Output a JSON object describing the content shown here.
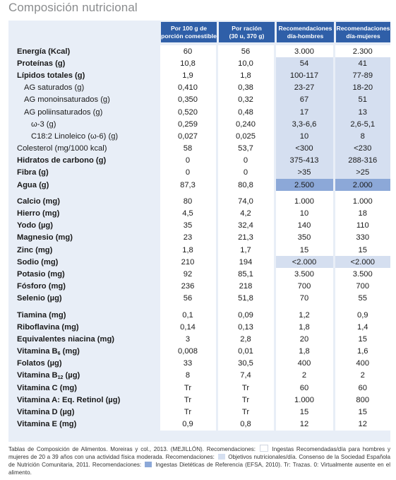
{
  "title": "Composición nutricional",
  "headers": [
    [
      "Por 100 g de",
      "porción comestible"
    ],
    [
      "Por ración",
      "(30 u, 370 g)"
    ],
    [
      "Recomendaciones",
      "día-hombres"
    ],
    [
      "Recomendaciones",
      "día-mujeres"
    ]
  ],
  "rows": [
    {
      "label": "Energía (Kcal)",
      "v": [
        "60",
        "56",
        "3.000",
        "2.300"
      ],
      "bold": true
    },
    {
      "label": "Proteínas (g)",
      "v": [
        "10,8",
        "10,0",
        "54",
        "41"
      ],
      "bold": true,
      "rec": "obj"
    },
    {
      "label": "Lípidos totales (g)",
      "v": [
        "1,9",
        "1,8",
        "100-117",
        "77-89"
      ],
      "bold": true,
      "rec": "obj"
    },
    {
      "label": "AG saturados (g)",
      "v": [
        "0,410",
        "0,38",
        "23-27",
        "18-20"
      ],
      "bold": false,
      "rec": "obj",
      "indent": 1
    },
    {
      "label": "AG monoinsaturados (g)",
      "v": [
        "0,350",
        "0,32",
        "67",
        "51"
      ],
      "bold": false,
      "rec": "obj",
      "indent": 1
    },
    {
      "label": "AG poliinsaturados (g)",
      "v": [
        "0,520",
        "0,48",
        "17",
        "13"
      ],
      "bold": false,
      "rec": "obj",
      "indent": 1
    },
    {
      "label": "ω-3 (g)",
      "v": [
        "0,259",
        "0,240",
        "3,3-6,6",
        "2,6-5,1"
      ],
      "bold": false,
      "rec": "obj",
      "indent": 2
    },
    {
      "label": "C18:2 Linoleico (ω-6) (g)",
      "v": [
        "0,027",
        "0,025",
        "10",
        "8"
      ],
      "bold": false,
      "rec": "obj",
      "indent": 2
    },
    {
      "label": "Colesterol (mg/1000 kcal)",
      "v": [
        "58",
        "53,7",
        "<300",
        "<230"
      ],
      "bold": false,
      "rec": "obj"
    },
    {
      "label": "Hidratos de carbono (g)",
      "v": [
        "0",
        "0",
        "375-413",
        "288-316"
      ],
      "bold": true,
      "rec": "obj"
    },
    {
      "label": "Fibra (g)",
      "v": [
        "0",
        "0",
        ">35",
        ">25"
      ],
      "bold": true,
      "rec": "obj"
    },
    {
      "label": "Agua (g)",
      "v": [
        "87,3",
        "80,8",
        "2.500",
        "2.000"
      ],
      "bold": true,
      "rec": "ide"
    },
    {
      "sep": true
    },
    {
      "label": "Calcio (mg)",
      "v": [
        "80",
        "74,0",
        "1.000",
        "1.000"
      ],
      "bold": true
    },
    {
      "label": "Hierro (mg)",
      "v": [
        "4,5",
        "4,2",
        "10",
        "18"
      ],
      "bold": true
    },
    {
      "label": "Yodo (µg)",
      "v": [
        "35",
        "32,4",
        "140",
        "110"
      ],
      "bold": true
    },
    {
      "label": "Magnesio (mg)",
      "v": [
        "23",
        "21,3",
        "350",
        "330"
      ],
      "bold": true
    },
    {
      "label": "Zinc (mg)",
      "v": [
        "1,8",
        "1,7",
        "15",
        "15"
      ],
      "bold": true
    },
    {
      "label": "Sodio (mg)",
      "v": [
        "210",
        "194",
        "<2.000",
        "<2.000"
      ],
      "bold": true,
      "rec": "obj"
    },
    {
      "label": "Potasio (mg)",
      "v": [
        "92",
        "85,1",
        "3.500",
        "3.500"
      ],
      "bold": true
    },
    {
      "label": "Fósforo (mg)",
      "v": [
        "236",
        "218",
        "700",
        "700"
      ],
      "bold": true
    },
    {
      "label": "Selenio (µg)",
      "v": [
        "56",
        "51,8",
        "70",
        "55"
      ],
      "bold": true
    },
    {
      "sep": true
    },
    {
      "label": "Tiamina (mg)",
      "v": [
        "0,1",
        "0,09",
        "1,2",
        "0,9"
      ],
      "bold": true
    },
    {
      "label": "Riboflavina (mg)",
      "v": [
        "0,14",
        "0,13",
        "1,8",
        "1,4"
      ],
      "bold": true
    },
    {
      "label": "Equivalentes niacina (mg)",
      "v": [
        "3",
        "2,8",
        "20",
        "15"
      ],
      "bold": true
    },
    {
      "label": "Vitamina B",
      "sub": "6",
      "after": " (mg)",
      "v": [
        "0,008",
        "0,01",
        "1,8",
        "1,6"
      ],
      "bold": true
    },
    {
      "label": "Folatos (µg)",
      "v": [
        "33",
        "30,5",
        "400",
        "400"
      ],
      "bold": true
    },
    {
      "label": "Vitamina B",
      "sub": "12",
      "after": " (µg)",
      "v": [
        "8",
        "7,4",
        "2",
        "2"
      ],
      "bold": true
    },
    {
      "label": "Vitamina C (mg)",
      "v": [
        "Tr",
        "Tr",
        "60",
        "60"
      ],
      "bold": true
    },
    {
      "label": "Vitamina A: Eq. Retinol (µg)",
      "v": [
        "Tr",
        "Tr",
        "1.000",
        "800"
      ],
      "bold": true
    },
    {
      "label": "Vitamina D (µg)",
      "v": [
        "Tr",
        "Tr",
        "15",
        "15"
      ],
      "bold": true
    },
    {
      "label": "Vitamina E (mg)",
      "v": [
        "0,9",
        "0,8",
        "12",
        "12"
      ],
      "bold": true
    }
  ],
  "footnote": {
    "p1": "Tablas de Composición de Alimentos. Moreiras y col., 2013. (MEJILLÓN). Recomendaciones:",
    "p2": "Ingestas Recomendadas/día para hombres y mujeres de 20 a 39 años con una actividad física moderada. Recomendaciones:",
    "p3": "Objetivos nutricionales/día. Consenso de la Sociedad Española de Nutrición Comunitaria, 2011. Recomendaciones:",
    "p4": "Ingestas Dietéticas de Referencia (EFSA, 2010). Tr: Trazas. 0: Virtualmente ausente en el alimento."
  },
  "colors": {
    "header": "#2f5fa8",
    "table_bg": "#e8eef7",
    "objetivos": "#d5dff0",
    "efsa": "#8ca8d8",
    "title": "#8a8c8e"
  }
}
